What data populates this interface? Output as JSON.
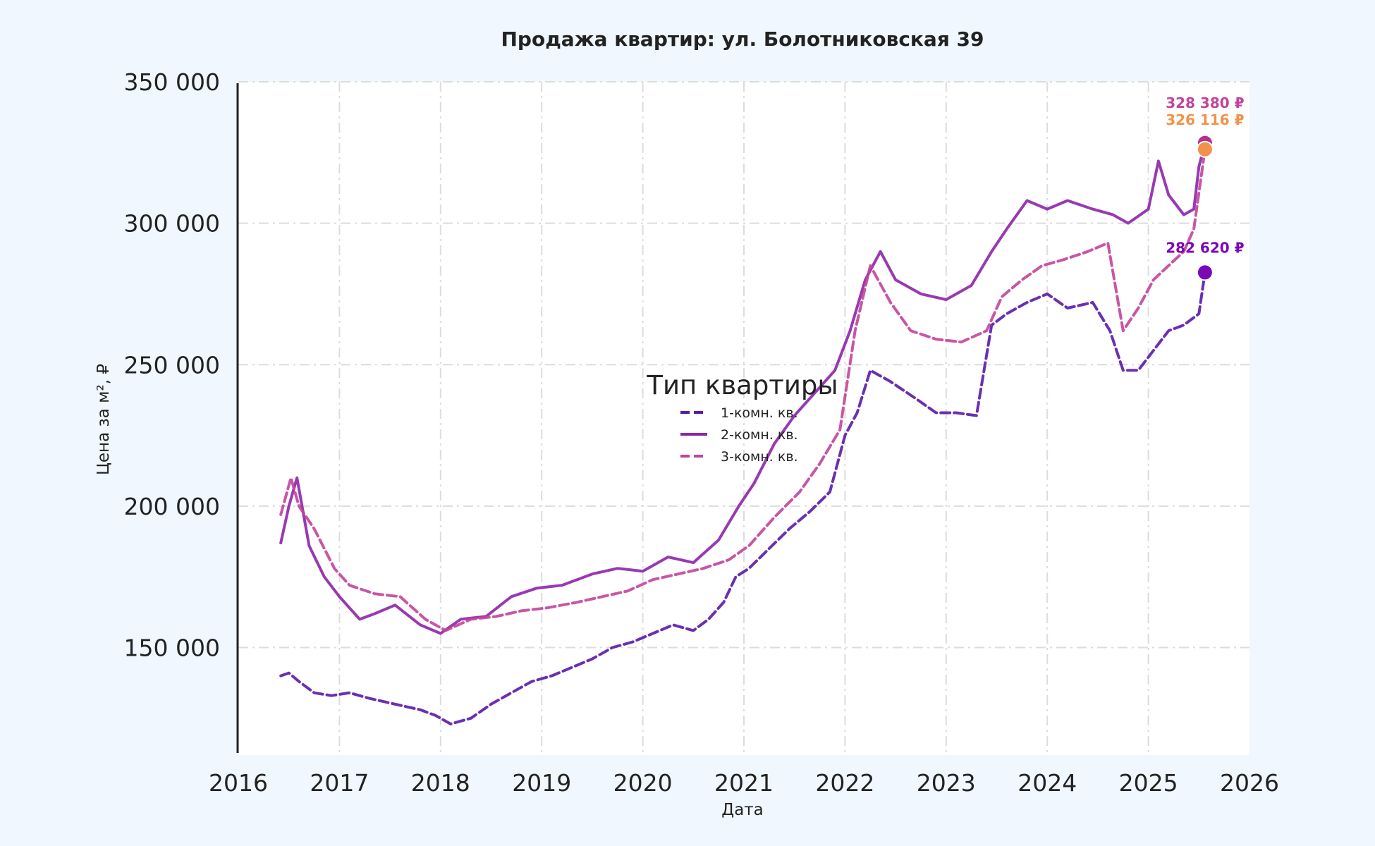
{
  "chart_data": {
    "type": "line",
    "title": "Продажа квартир: ул. Болотниковская 39",
    "xlabel": "Дата",
    "ylabel": "Цена за м², ₽",
    "xlim": [
      2016,
      2026
    ],
    "ylim": [
      112000,
      350000
    ],
    "x_ticks": [
      "2016",
      "2017",
      "2018",
      "2019",
      "2020",
      "2021",
      "2022",
      "2023",
      "2024",
      "2025",
      "2026"
    ],
    "y_ticks": [
      "150 000",
      "200 000",
      "250 000",
      "300 000",
      "350 000"
    ],
    "grid": true,
    "legend": {
      "title": "Тип квартиры",
      "position": "center",
      "entries": [
        "1-комн. кв.",
        "2-комн. кв.",
        "3-комн. кв."
      ]
    },
    "series": [
      {
        "name": "1-комн. кв.",
        "color": "#5a1aa8",
        "style": "dashed",
        "x": [
          2016.42,
          2016.5,
          2016.6,
          2016.75,
          2016.92,
          2017.1,
          2017.3,
          2017.55,
          2017.8,
          2017.95,
          2018.1,
          2018.3,
          2018.5,
          2018.7,
          2018.9,
          2019.1,
          2019.3,
          2019.5,
          2019.7,
          2019.9,
          2020.1,
          2020.3,
          2020.5,
          2020.65,
          2020.8,
          2020.92,
          2021.05,
          2021.25,
          2021.45,
          2021.65,
          2021.85,
          2022.0,
          2022.12,
          2022.25,
          2022.45,
          2022.7,
          2022.9,
          2023.1,
          2023.3,
          2023.45,
          2023.6,
          2023.8,
          2024.0,
          2024.2,
          2024.45,
          2024.62,
          2024.75,
          2024.9,
          2025.05,
          2025.2,
          2025.35,
          2025.5,
          2025.56
        ],
        "values": [
          140000,
          141000,
          138000,
          134000,
          133000,
          134000,
          132000,
          130000,
          128000,
          126000,
          123000,
          125000,
          130000,
          134000,
          138000,
          140000,
          143000,
          146000,
          150000,
          152000,
          155000,
          158000,
          156000,
          160000,
          166000,
          175000,
          178000,
          185000,
          192000,
          198000,
          205000,
          225000,
          233000,
          248000,
          244000,
          238000,
          233000,
          233000,
          232000,
          264000,
          268000,
          272000,
          275000,
          270000,
          272000,
          262000,
          248000,
          248000,
          255000,
          262000,
          264000,
          268000,
          282620
        ]
      },
      {
        "name": "2-комн. кв.",
        "color": "#8e24aa",
        "style": "solid",
        "x": [
          2016.42,
          2016.5,
          2016.58,
          2016.7,
          2016.85,
          2017.0,
          2017.2,
          2017.35,
          2017.55,
          2017.8,
          2018.0,
          2018.2,
          2018.45,
          2018.7,
          2018.95,
          2019.2,
          2019.5,
          2019.75,
          2020.0,
          2020.25,
          2020.5,
          2020.75,
          2020.95,
          2021.1,
          2021.3,
          2021.5,
          2021.7,
          2021.9,
          2022.05,
          2022.2,
          2022.35,
          2022.5,
          2022.75,
          2023.0,
          2023.25,
          2023.45,
          2023.6,
          2023.8,
          2024.0,
          2024.2,
          2024.45,
          2024.65,
          2024.8,
          2025.0,
          2025.1,
          2025.2,
          2025.35,
          2025.45,
          2025.5,
          2025.56
        ],
        "values": [
          187000,
          200000,
          210000,
          186000,
          175000,
          168000,
          160000,
          162000,
          165000,
          158000,
          155000,
          160000,
          161000,
          168000,
          171000,
          172000,
          176000,
          178000,
          177000,
          182000,
          180000,
          188000,
          200000,
          208000,
          222000,
          232000,
          240000,
          248000,
          262000,
          280000,
          290000,
          280000,
          275000,
          273000,
          278000,
          290000,
          298000,
          308000,
          305000,
          308000,
          305000,
          303000,
          300000,
          305000,
          322000,
          310000,
          303000,
          305000,
          320000,
          328380
        ]
      },
      {
        "name": "3-комн. кв.",
        "color": "#c2449a",
        "style": "dashed",
        "x": [
          2016.42,
          2016.52,
          2016.6,
          2016.75,
          2016.95,
          2017.1,
          2017.35,
          2017.6,
          2017.85,
          2018.05,
          2018.3,
          2018.55,
          2018.8,
          2019.05,
          2019.35,
          2019.6,
          2019.85,
          2020.1,
          2020.35,
          2020.6,
          2020.85,
          2021.05,
          2021.3,
          2021.55,
          2021.75,
          2021.95,
          2022.1,
          2022.25,
          2022.45,
          2022.65,
          2022.9,
          2023.15,
          2023.4,
          2023.55,
          2023.75,
          2023.95,
          2024.15,
          2024.4,
          2024.6,
          2024.75,
          2024.9,
          2025.05,
          2025.2,
          2025.35,
          2025.45,
          2025.56
        ],
        "values": [
          197000,
          210000,
          200000,
          192000,
          178000,
          172000,
          169000,
          168000,
          160000,
          156000,
          160000,
          161000,
          163000,
          164000,
          166000,
          168000,
          170000,
          174000,
          176000,
          178000,
          181000,
          186000,
          196000,
          205000,
          215000,
          227000,
          262000,
          285000,
          272000,
          262000,
          259000,
          258000,
          262000,
          274000,
          280000,
          285000,
          287000,
          290000,
          293000,
          262000,
          270000,
          280000,
          285000,
          290000,
          298000,
          326116
        ]
      }
    ],
    "end_labels": [
      {
        "series": "2-комн. кв.",
        "text": "328 380 ₽",
        "color": "#c2449a"
      },
      {
        "series": "3-комн. кв.",
        "text": "326 116 ₽",
        "color": "#f0924a"
      },
      {
        "series": "1-комн. кв.",
        "text": "282 620 ₽",
        "color": "#7a0ab5"
      }
    ]
  }
}
